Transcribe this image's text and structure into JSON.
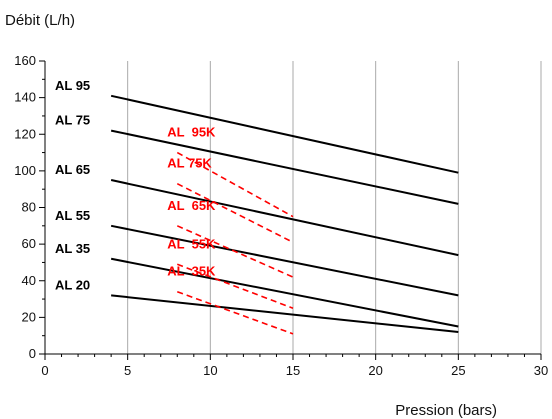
{
  "chart_data": {
    "type": "line",
    "title": "",
    "xlabel": "Pression (bars)",
    "ylabel": "Débit (L/h)",
    "xlim": [
      0,
      30
    ],
    "ylim": [
      0,
      160
    ],
    "x_ticks": [
      0,
      5,
      10,
      15,
      20,
      25,
      30
    ],
    "y_ticks": [
      0,
      20,
      40,
      60,
      80,
      100,
      120,
      140,
      160
    ],
    "grid": {
      "x": true,
      "y": false
    },
    "legend": "none",
    "colors": {
      "AL": "#000000",
      "ALK": "#ff0000"
    },
    "series": [
      {
        "name": "AL 95",
        "color": "#000000",
        "dash": false,
        "x": [
          4,
          25
        ],
        "y": [
          141,
          99
        ]
      },
      {
        "name": "AL 75",
        "color": "#000000",
        "dash": false,
        "x": [
          4,
          25
        ],
        "y": [
          122,
          82
        ]
      },
      {
        "name": "AL 65",
        "color": "#000000",
        "dash": false,
        "x": [
          4,
          25
        ],
        "y": [
          95,
          54
        ]
      },
      {
        "name": "AL 55",
        "color": "#000000",
        "dash": false,
        "x": [
          4,
          25
        ],
        "y": [
          70,
          32
        ]
      },
      {
        "name": "AL 35",
        "color": "#000000",
        "dash": false,
        "x": [
          4,
          25
        ],
        "y": [
          52,
          15
        ]
      },
      {
        "name": "AL 20",
        "color": "#000000",
        "dash": false,
        "x": [
          4,
          25
        ],
        "y": [
          32,
          12
        ]
      },
      {
        "name": "AL  95K",
        "color": "#ff0000",
        "dash": true,
        "x": [
          8,
          15
        ],
        "y": [
          110,
          75
        ]
      },
      {
        "name": "AL 75K",
        "color": "#ff0000",
        "dash": true,
        "x": [
          8,
          15
        ],
        "y": [
          93,
          61
        ]
      },
      {
        "name": "AL  65K",
        "color": "#ff0000",
        "dash": true,
        "x": [
          8,
          15
        ],
        "y": [
          70,
          42
        ]
      },
      {
        "name": "AL  55K",
        "color": "#ff0000",
        "dash": true,
        "x": [
          8,
          15
        ],
        "y": [
          49,
          25
        ]
      },
      {
        "name": "AL  35K",
        "color": "#ff0000",
        "dash": true,
        "x": [
          8,
          15
        ],
        "y": [
          34,
          11
        ]
      }
    ]
  }
}
